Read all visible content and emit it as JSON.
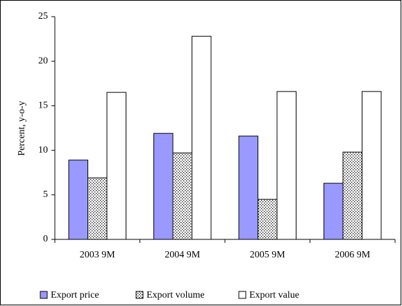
{
  "chart_data": {
    "type": "bar",
    "y_label": "Percent, y-o-y",
    "categories": [
      "2003 9M",
      "2004 9M",
      "2005 9M",
      "2006 9M"
    ],
    "series": [
      {
        "name": "Export price",
        "color": "#9999ff",
        "values": [
          8.9,
          11.9,
          11.6,
          6.3
        ]
      },
      {
        "name": "Export volume",
        "color": "#ffffff",
        "pattern": "dots",
        "values": [
          6.9,
          9.7,
          4.5,
          9.8
        ]
      },
      {
        "name": "Export value",
        "color": "#ffffff",
        "values": [
          16.5,
          22.8,
          16.6,
          16.6
        ]
      }
    ],
    "ylim": [
      0,
      25
    ],
    "yticks": [
      0,
      5,
      10,
      15,
      20,
      25
    ],
    "grid": false,
    "legend": "bottom"
  }
}
